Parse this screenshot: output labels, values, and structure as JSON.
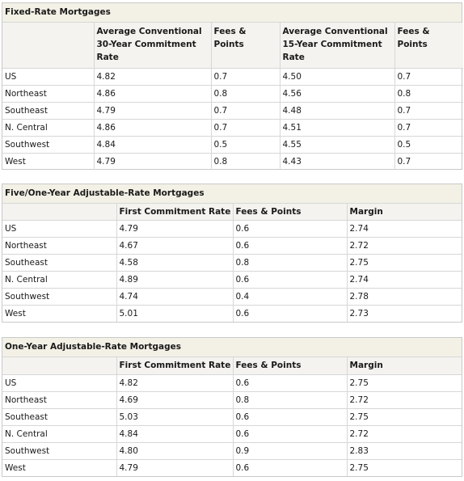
{
  "fixed": {
    "title": "Fixed-Rate Mortgages",
    "headers": [
      "",
      "Average Conventional 30-Year Commitment Rate",
      "Fees & Points",
      "Average Conventional 15-Year Commitment Rate",
      "Fees & Points"
    ],
    "rows": [
      [
        "US",
        "4.82",
        "0.7",
        "4.50",
        "0.7"
      ],
      [
        "Northeast",
        "4.86",
        "0.8",
        "4.56",
        "0.8"
      ],
      [
        "Southeast",
        "4.79",
        "0.7",
        "4.48",
        "0.7"
      ],
      [
        "N. Central",
        "4.86",
        "0.7",
        "4.51",
        "0.7"
      ],
      [
        "Southwest",
        "4.84",
        "0.5",
        "4.55",
        "0.5"
      ],
      [
        "West",
        "4.79",
        "0.8",
        "4.43",
        "0.7"
      ]
    ]
  },
  "five_one": {
    "title": "Five/One-Year Adjustable-Rate Mortgages",
    "headers": [
      "",
      "First Commitment Rate",
      "Fees & Points",
      "Margin"
    ],
    "rows": [
      [
        "US",
        "4.79",
        "0.6",
        "2.74"
      ],
      [
        "Northeast",
        "4.67",
        "0.6",
        "2.72"
      ],
      [
        "Southeast",
        "4.58",
        "0.8",
        "2.75"
      ],
      [
        "N. Central",
        "4.89",
        "0.6",
        "2.74"
      ],
      [
        "Southwest",
        "4.74",
        "0.4",
        "2.78"
      ],
      [
        "West",
        "5.01",
        "0.6",
        "2.73"
      ]
    ]
  },
  "one_year": {
    "title": "One-Year Adjustable-Rate Mortgages",
    "headers": [
      "",
      "First Commitment Rate",
      "Fees & Points",
      "Margin"
    ],
    "rows": [
      [
        "US",
        "4.82",
        "0.6",
        "2.75"
      ],
      [
        "Northeast",
        "4.69",
        "0.8",
        "2.72"
      ],
      [
        "Southeast",
        "5.03",
        "0.6",
        "2.75"
      ],
      [
        "N. Central",
        "4.84",
        "0.6",
        "2.72"
      ],
      [
        "Southwest",
        "4.80",
        "0.9",
        "2.83"
      ],
      [
        "West",
        "4.79",
        "0.6",
        "2.75"
      ]
    ]
  }
}
